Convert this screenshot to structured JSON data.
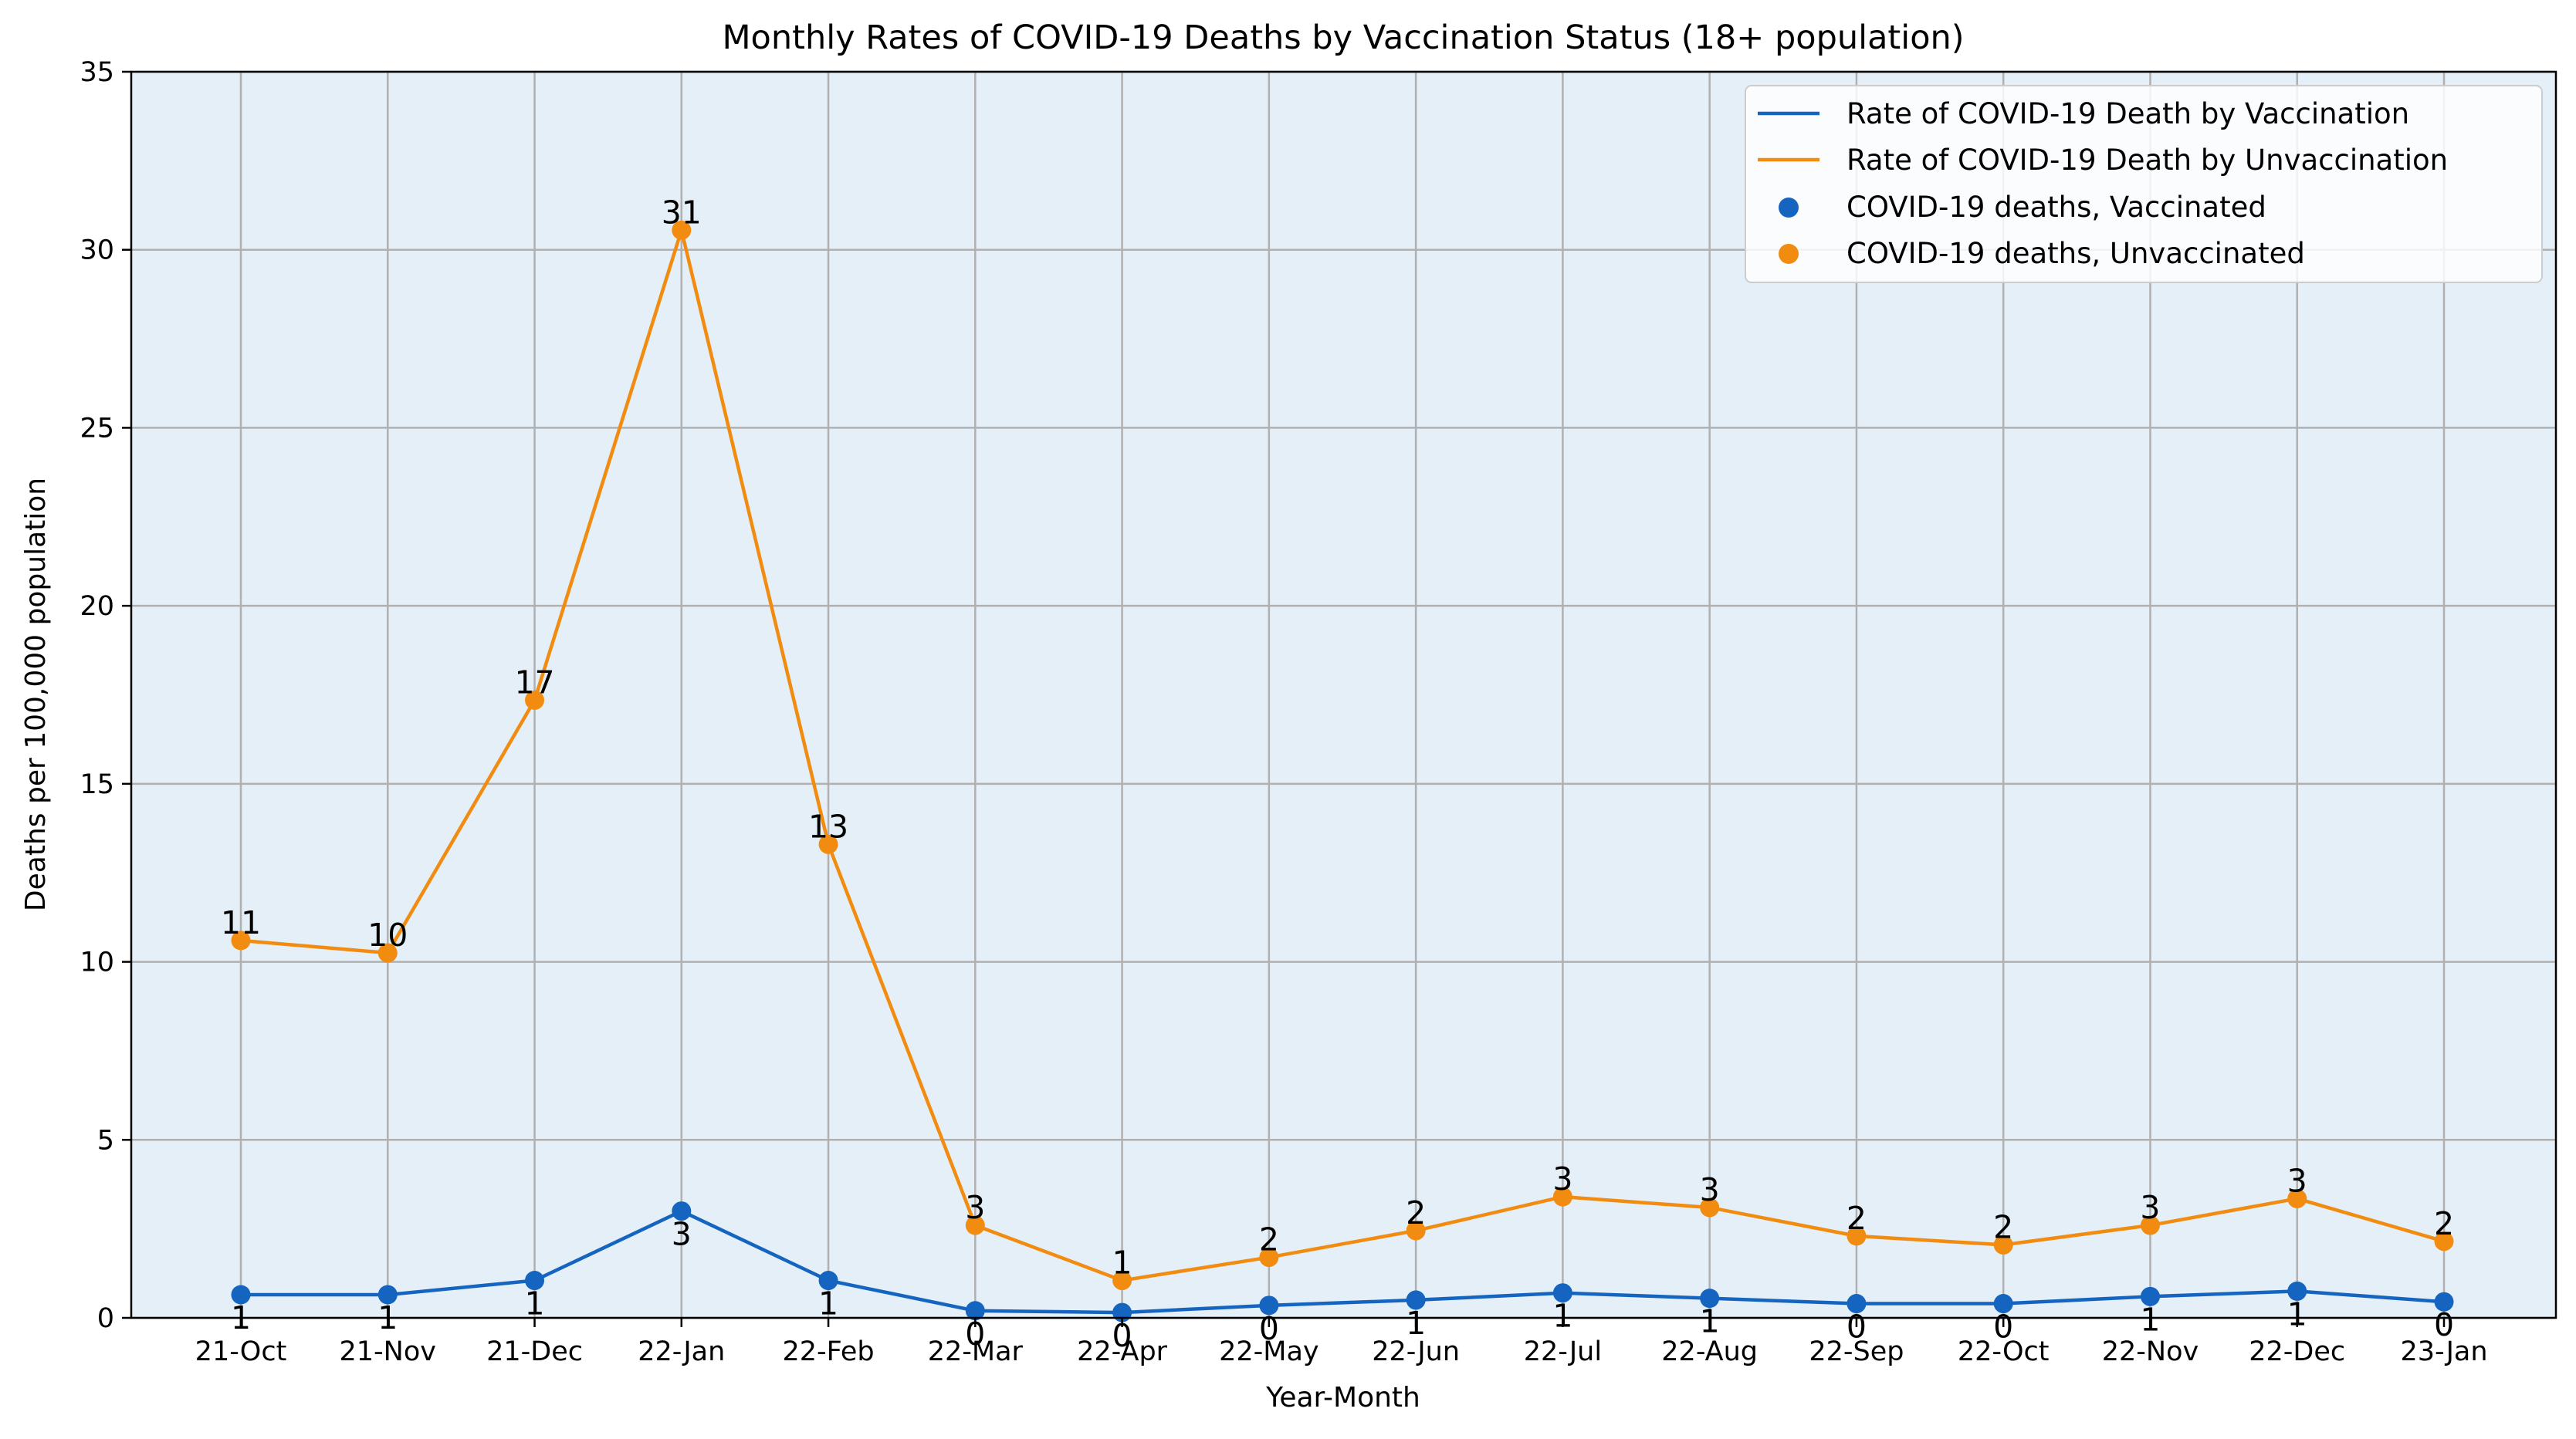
{
  "chart_data": {
    "type": "line",
    "title": "Monthly Rates of COVID-19 Deaths by Vaccination Status (18+ population)",
    "xlabel": "Year-Month",
    "ylabel": "Deaths per 100,000 population",
    "ylim": [
      0,
      35
    ],
    "yticks": [
      0,
      5,
      10,
      15,
      20,
      25,
      30,
      35
    ],
    "grid": true,
    "legend_position": "top-right",
    "background_color": "#e4eff8",
    "categories": [
      "21-Oct",
      "21-Nov",
      "21-Dec",
      "22-Jan",
      "22-Feb",
      "22-Mar",
      "22-Apr",
      "22-May",
      "22-Jun",
      "22-Jul",
      "22-Aug",
      "22-Sep",
      "22-Oct",
      "22-Nov",
      "22-Dec",
      "23-Jan"
    ],
    "series": [
      {
        "name": "Rate of COVID-19 Death by Vaccination",
        "scatter_name": "COVID-19 deaths, Vaccinated",
        "color": "#1565c0",
        "values": [
          0.65,
          0.65,
          1.05,
          3.0,
          1.05,
          0.2,
          0.15,
          0.35,
          0.5,
          0.7,
          0.55,
          0.4,
          0.4,
          0.6,
          0.75,
          0.45
        ],
        "labels": [
          "1",
          "1",
          "1",
          "3",
          "1",
          "0",
          "0",
          "0",
          "1",
          "1",
          "1",
          "0",
          "0",
          "1",
          "1",
          "0"
        ],
        "label_position": "below"
      },
      {
        "name": "Rate of COVID-19 Death by Unvaccination",
        "scatter_name": "COVID-19 deaths, Unvaccinated",
        "color": "#f28c10",
        "values": [
          10.6,
          10.25,
          17.35,
          30.55,
          13.3,
          2.6,
          1.05,
          1.7,
          2.45,
          3.4,
          3.1,
          2.3,
          2.05,
          2.6,
          3.35,
          2.15
        ],
        "labels": [
          "11",
          "10",
          "17",
          "31",
          "13",
          "3",
          "1",
          "2",
          "2",
          "3",
          "3",
          "2",
          "2",
          "3",
          "3",
          "2"
        ],
        "label_position": "above"
      }
    ]
  }
}
